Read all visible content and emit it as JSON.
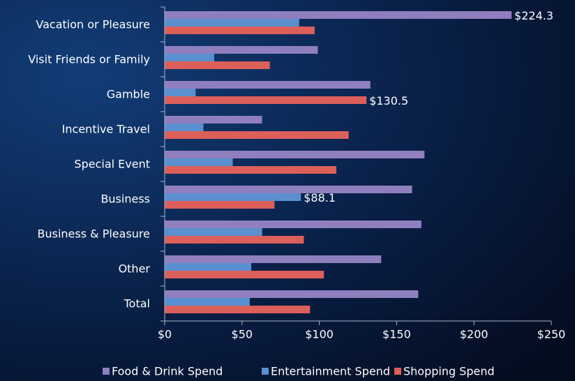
{
  "chart_data": {
    "type": "hbar",
    "categories": [
      "Vacation or Pleasure",
      "Visit Friends or Family",
      "Gamble",
      "Incentive Travel",
      "Special Event",
      "Business",
      "Business & Pleasure",
      "Other",
      "Total"
    ],
    "series": [
      {
        "name": "Food & Drink Spend",
        "color": "#8f7fbf",
        "values": [
          224.3,
          99,
          133,
          63,
          168,
          160,
          166,
          140,
          164
        ],
        "value_labels": [
          "$224.3",
          null,
          null,
          null,
          null,
          null,
          null,
          null,
          null
        ]
      },
      {
        "name": "Entertainment Spend",
        "color": "#5a8fd0",
        "values": [
          87,
          32,
          20,
          25,
          44,
          88.1,
          63,
          56,
          55
        ],
        "value_labels": [
          null,
          null,
          null,
          null,
          null,
          "$88.1",
          null,
          null,
          null
        ]
      },
      {
        "name": "Shopping Spend",
        "color": "#dc5f5a",
        "values": [
          97,
          68,
          130.5,
          119,
          111,
          71,
          90,
          103,
          94
        ],
        "value_labels": [
          null,
          null,
          "$130.5",
          null,
          null,
          null,
          null,
          null,
          null
        ]
      }
    ],
    "xlim": [
      0,
      250
    ],
    "xticks": [
      {
        "value": 0,
        "label": "$0"
      },
      {
        "value": 50,
        "label": "$50"
      },
      {
        "value": 100,
        "label": "$100"
      },
      {
        "value": 150,
        "label": "$150"
      },
      {
        "value": 200,
        "label": "$200"
      },
      {
        "value": 250,
        "label": "$250"
      }
    ],
    "legend": "bottom"
  }
}
